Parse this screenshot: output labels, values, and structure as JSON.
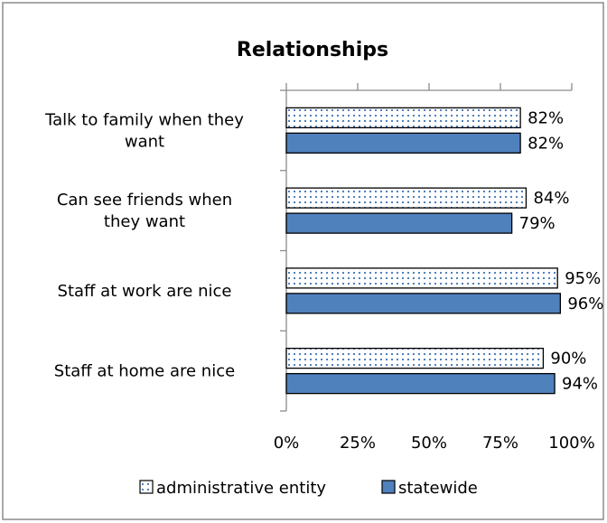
{
  "chart_data": {
    "type": "bar",
    "orientation": "horizontal",
    "title": "Relationships",
    "categories": [
      [
        "Talk to family when they",
        "want"
      ],
      [
        "Can see friends when",
        "they want"
      ],
      [
        "Staff at work are nice"
      ],
      [
        "Staff at home are nice"
      ]
    ],
    "series": [
      {
        "name": "administrative entity",
        "values": [
          82,
          84,
          95,
          90
        ],
        "labels": [
          "82%",
          "84%",
          "95%",
          "90%"
        ],
        "color": "#ffffff",
        "dot_color": "#4f81bd",
        "pattern": "dotted"
      },
      {
        "name": "statewide",
        "values": [
          82,
          79,
          96,
          94
        ],
        "labels": [
          "82%",
          "79%",
          "96%",
          "94%"
        ],
        "color": "#4f81bd",
        "pattern": "solid"
      }
    ],
    "xlim": [
      0,
      100
    ],
    "x_ticks": [
      "0%",
      "25%",
      "50%",
      "75%",
      "100%"
    ],
    "grid": false,
    "legend_position": "bottom"
  }
}
